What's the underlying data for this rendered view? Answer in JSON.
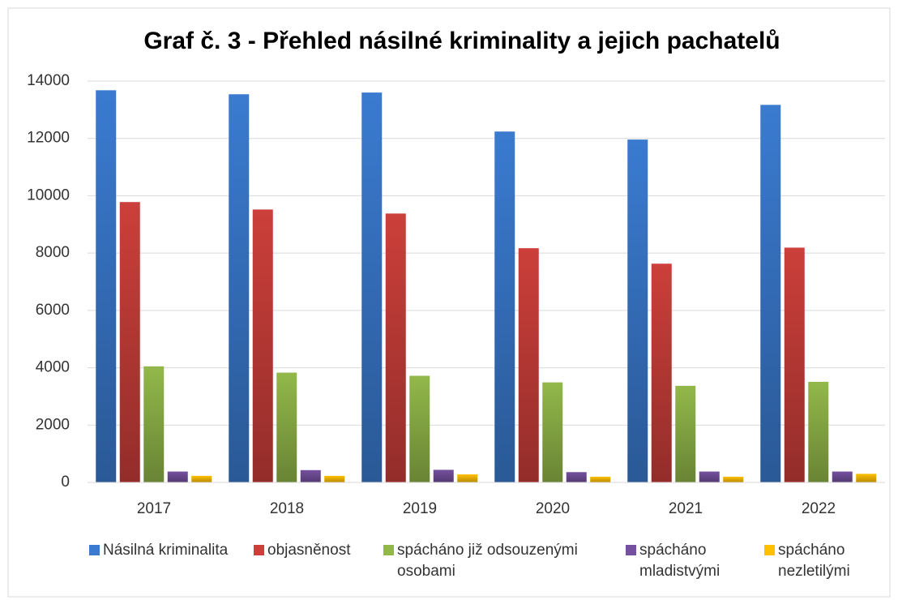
{
  "chart_data": {
    "type": "bar",
    "title": "Graf č. 3 - Přehled násilné kriminality a jejich pachatelů",
    "categories": [
      "2017",
      "2018",
      "2019",
      "2020",
      "2021",
      "2022"
    ],
    "series": [
      {
        "name": "Násilná kriminalita",
        "color": "#3a7bd0",
        "values": [
          13680,
          13540,
          13600,
          12240,
          11960,
          13170
        ]
      },
      {
        "name": "objasněnost",
        "color": "#cc3f3a",
        "values": [
          9780,
          9520,
          9380,
          8170,
          7630,
          8190
        ]
      },
      {
        "name": "spácháno již odsouzenými osobami",
        "color": "#92b84a",
        "values": [
          4050,
          3830,
          3720,
          3490,
          3370,
          3510
        ]
      },
      {
        "name": "spácháno mladistvými",
        "color": "#74509f",
        "values": [
          380,
          430,
          440,
          360,
          380,
          380
        ]
      },
      {
        "name": "spácháno nezletilými",
        "color": "#ffc000",
        "values": [
          230,
          230,
          280,
          200,
          200,
          300
        ]
      }
    ],
    "ylim": [
      0,
      14000
    ],
    "yticks": [
      0,
      2000,
      4000,
      6000,
      8000,
      10000,
      12000,
      14000
    ],
    "grid": true,
    "legend": "bottom"
  }
}
